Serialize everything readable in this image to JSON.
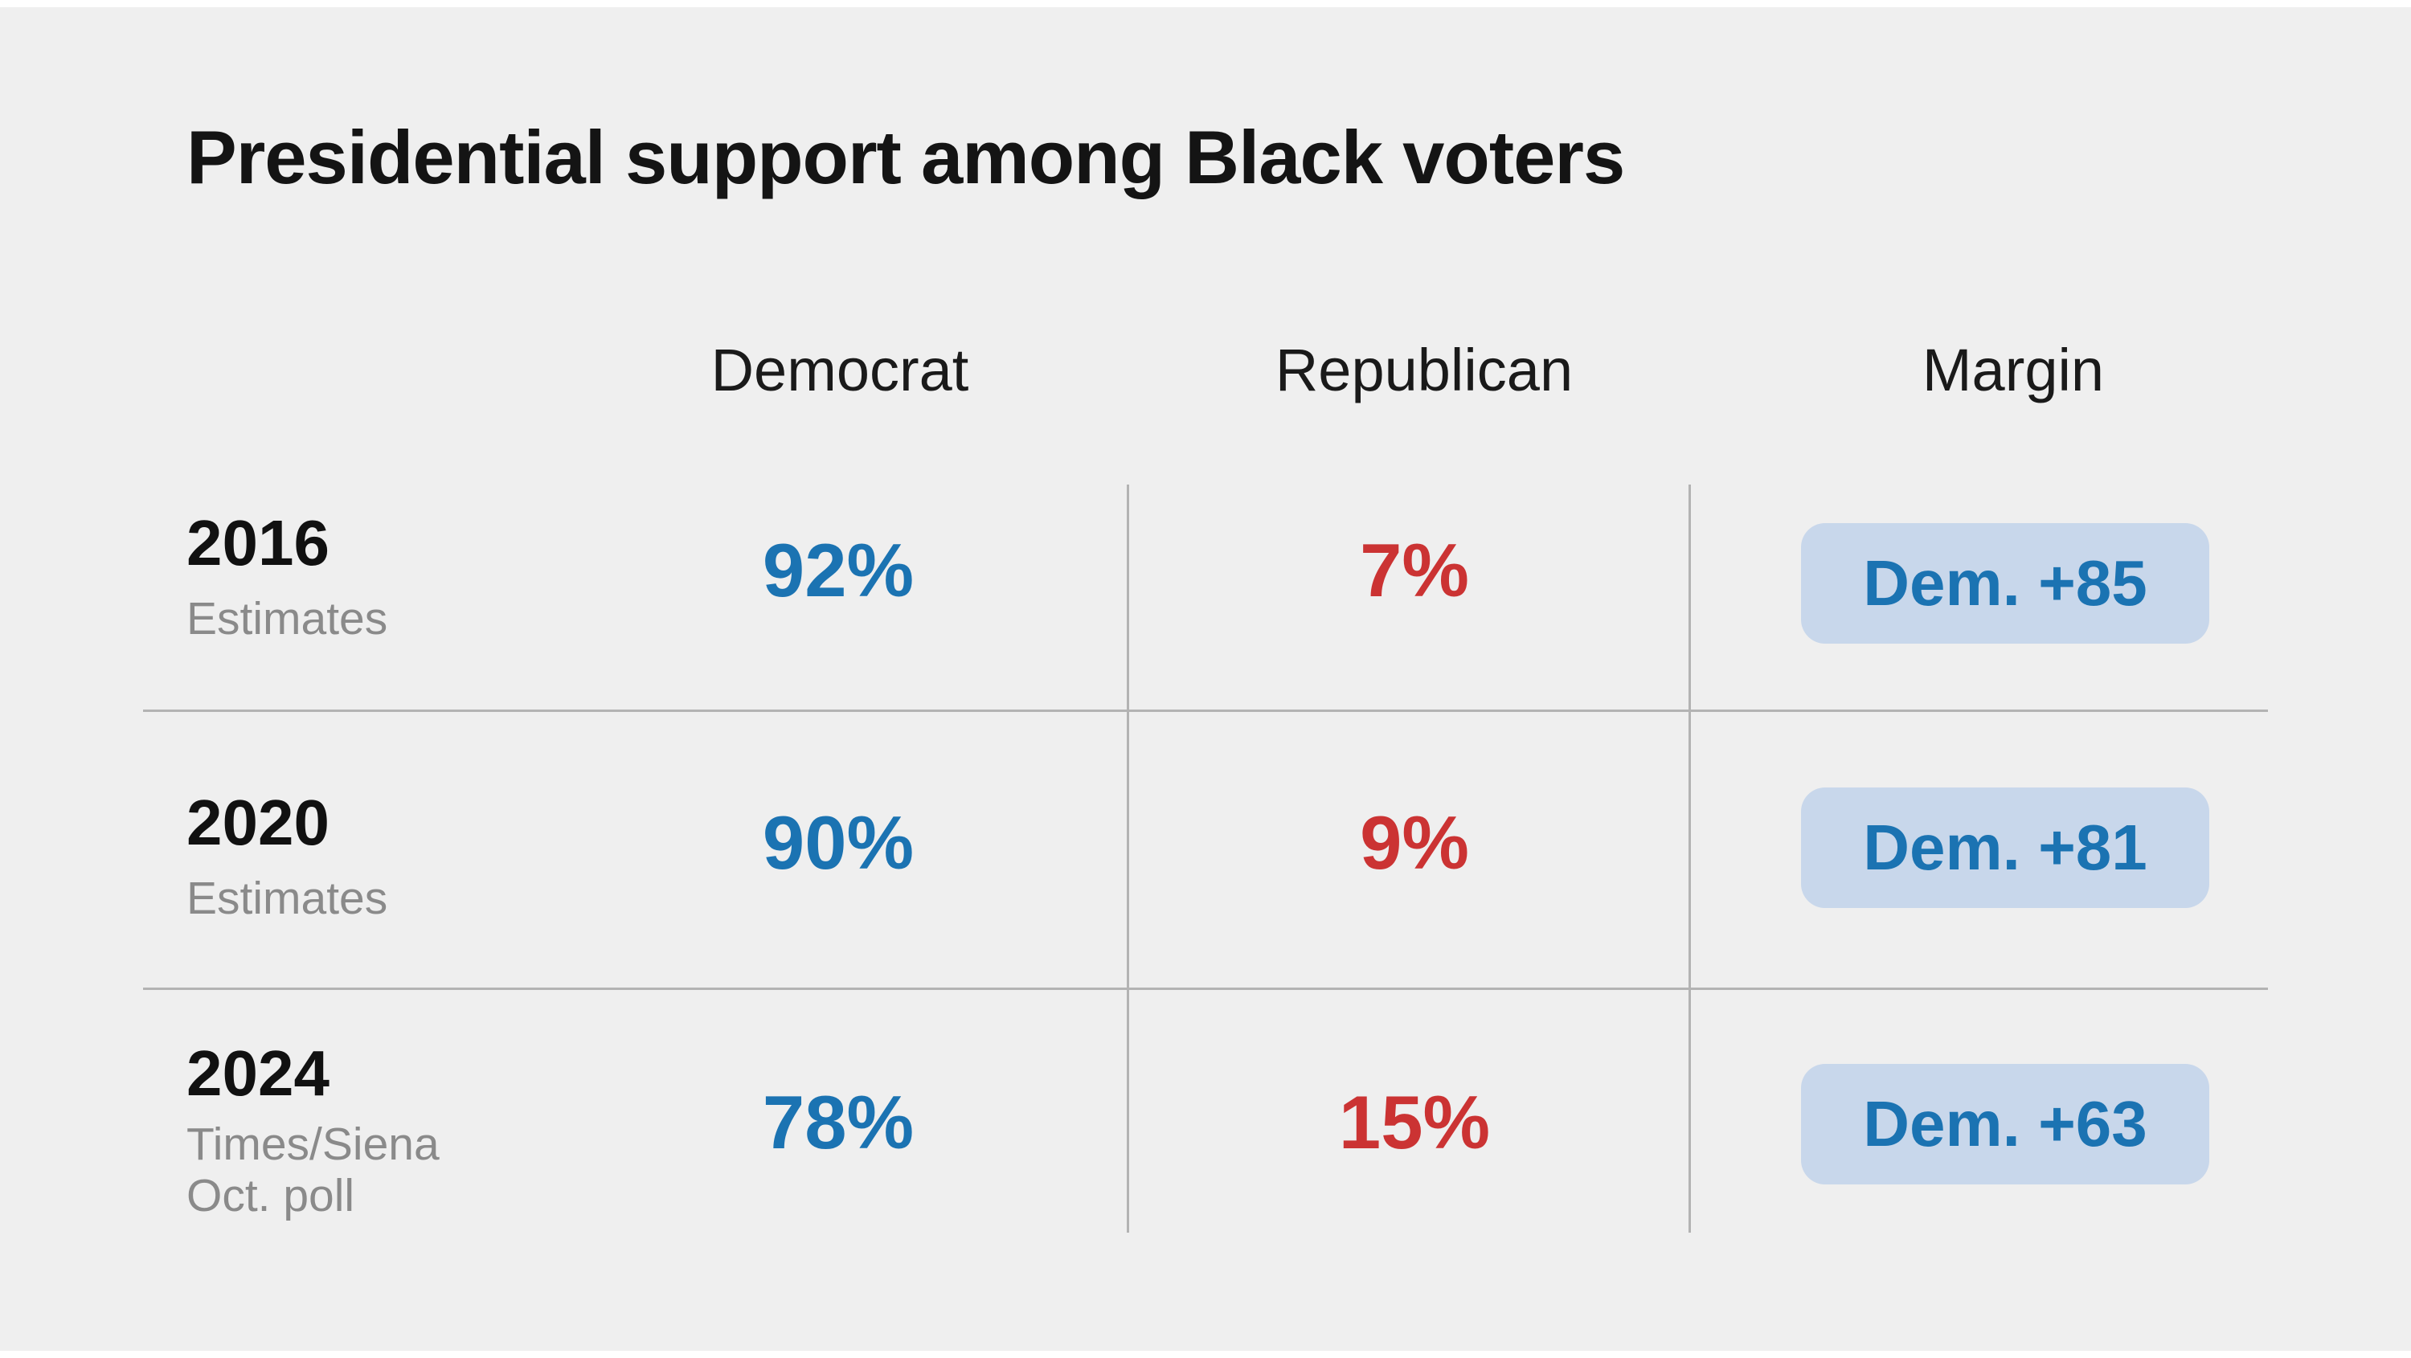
{
  "title": "Presidential support among Black voters",
  "columns": {
    "democrat": "Democrat",
    "republican": "Republican",
    "margin": "Margin"
  },
  "rows": [
    {
      "year": "2016",
      "sub1": "Estimates",
      "sub2": "",
      "democrat": "92%",
      "republican": "7%",
      "margin": "Dem. +85"
    },
    {
      "year": "2020",
      "sub1": "Estimates",
      "sub2": "",
      "democrat": "90%",
      "republican": "9%",
      "margin": "Dem. +81"
    },
    {
      "year": "2024",
      "sub1": "Times/Siena",
      "sub2": "Oct. poll",
      "democrat": "78%",
      "republican": "15%",
      "margin": "Dem. +63"
    }
  ],
  "colors": {
    "background": "#efefef",
    "democrat_blue": "#1b73b2",
    "republican_red": "#cb3333",
    "margin_badge_bg": "#c8d7eb",
    "muted_text": "#8a8a8a",
    "divider": "#b3b3b3"
  },
  "chart_data": {
    "type": "table",
    "title": "Presidential support among Black voters",
    "columns": [
      "Democrat",
      "Republican",
      "Margin"
    ],
    "rows": [
      {
        "label": "2016",
        "sublabel": "Estimates",
        "democrat_pct": 92,
        "republican_pct": 7,
        "margin_label": "Dem. +85",
        "margin_points": 85
      },
      {
        "label": "2020",
        "sublabel": "Estimates",
        "democrat_pct": 90,
        "republican_pct": 9,
        "margin_label": "Dem. +81",
        "margin_points": 81
      },
      {
        "label": "2024",
        "sublabel": "Times/Siena Oct. poll",
        "democrat_pct": 78,
        "republican_pct": 15,
        "margin_label": "Dem. +63",
        "margin_points": 63
      }
    ],
    "layout": {
      "grid": "light-gray row and column dividers",
      "legend": "none",
      "value_colors": {
        "democrat": "blue",
        "republican": "red",
        "margin": "blue pill badge"
      }
    }
  }
}
